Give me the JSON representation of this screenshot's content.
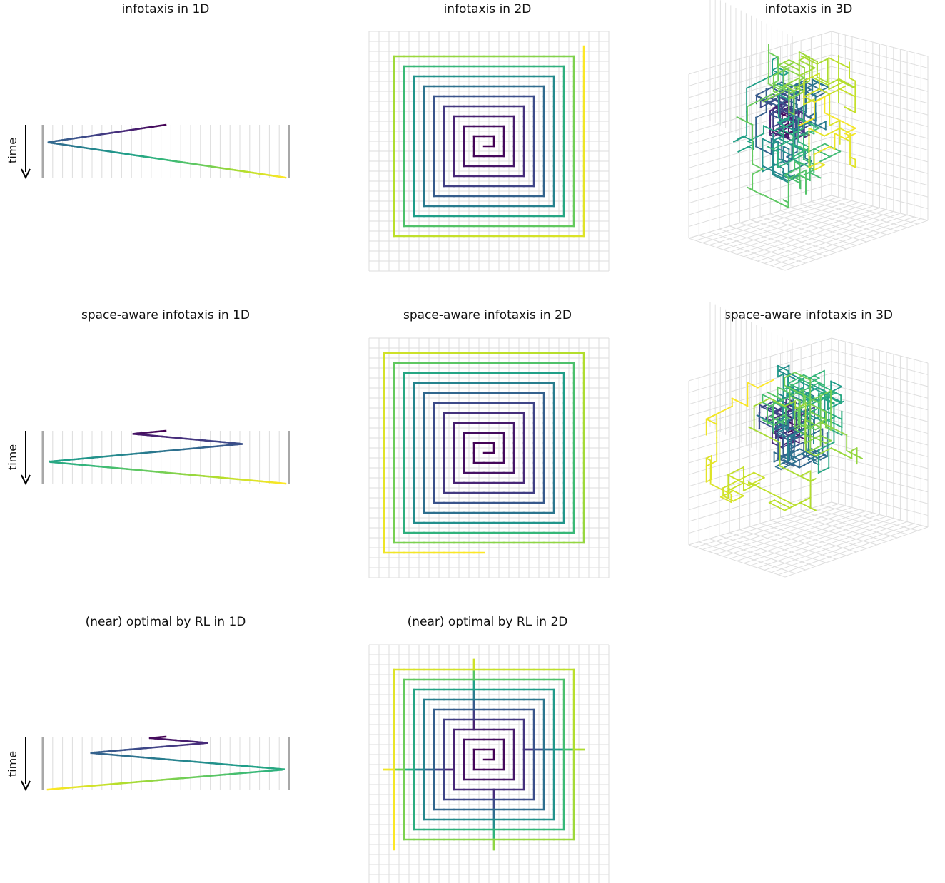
{
  "time_label": "time",
  "panels": [
    {
      "title": "infotaxis in 1D"
    },
    {
      "title": "infotaxis in 2D"
    },
    {
      "title": "infotaxis in 3D"
    },
    {
      "title": "space-aware infotaxis in 1D"
    },
    {
      "title": "space-aware infotaxis in 2D"
    },
    {
      "title": "space-aware infotaxis in 3D"
    },
    {
      "title": "(near) optimal by RL in 1D"
    },
    {
      "title": "(near) optimal by RL in 2D"
    }
  ],
  "colormap": "viridis"
}
